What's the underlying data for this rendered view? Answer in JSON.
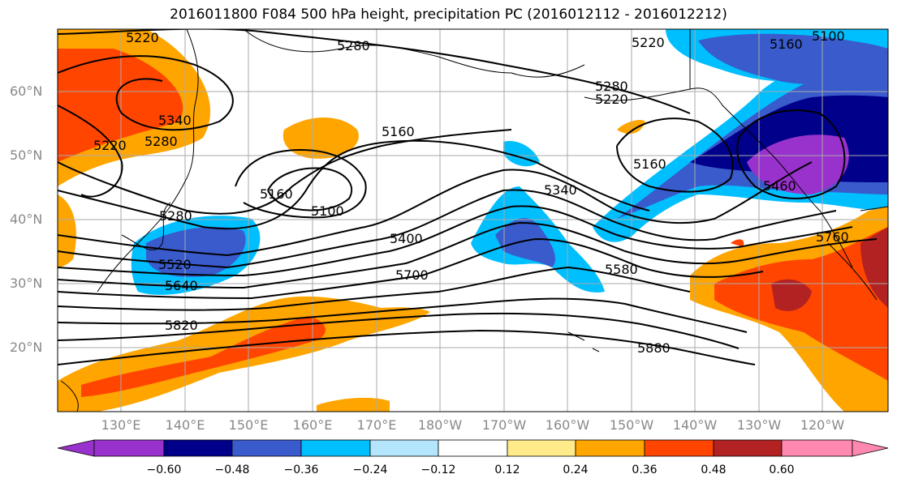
{
  "title": "2016011800 F084 500 hPa height, precipitation PC (2016012112 - 2016012212)",
  "lat_labels": [
    "60°N",
    "50°N",
    "40°N",
    "30°N",
    "20°N"
  ],
  "lon_labels": [
    "130°E",
    "140°E",
    "150°E",
    "160°E",
    "170°E",
    "180°W",
    "170°W",
    "160°W",
    "150°W",
    "140°W",
    "130°W",
    "120°W"
  ],
  "contour_labels": [
    "5220",
    "5280",
    "5340",
    "5280",
    "5220",
    "5280",
    "5520",
    "5640",
    "5820",
    "5160",
    "5160",
    "5100",
    "5400",
    "5700",
    "5220",
    "5280",
    "5160",
    "5100",
    "5220",
    "5160",
    "5340",
    "5580",
    "5460",
    "5760",
    "5880"
  ],
  "colorbar": {
    "labels": [
      "−0.60",
      "−0.48",
      "−0.36",
      "−0.24",
      "−0.12",
      "0.12",
      "0.24",
      "0.36",
      "0.48",
      "0.60"
    ],
    "colors": [
      "#9932CC",
      "#00008B",
      "#3A5BCC",
      "#00BFFF",
      "#B3E5FC",
      "#FFFFFF",
      "#FFEB8A",
      "#FFA500",
      "#FF4500",
      "#B22222",
      "#FF88B0"
    ]
  }
}
